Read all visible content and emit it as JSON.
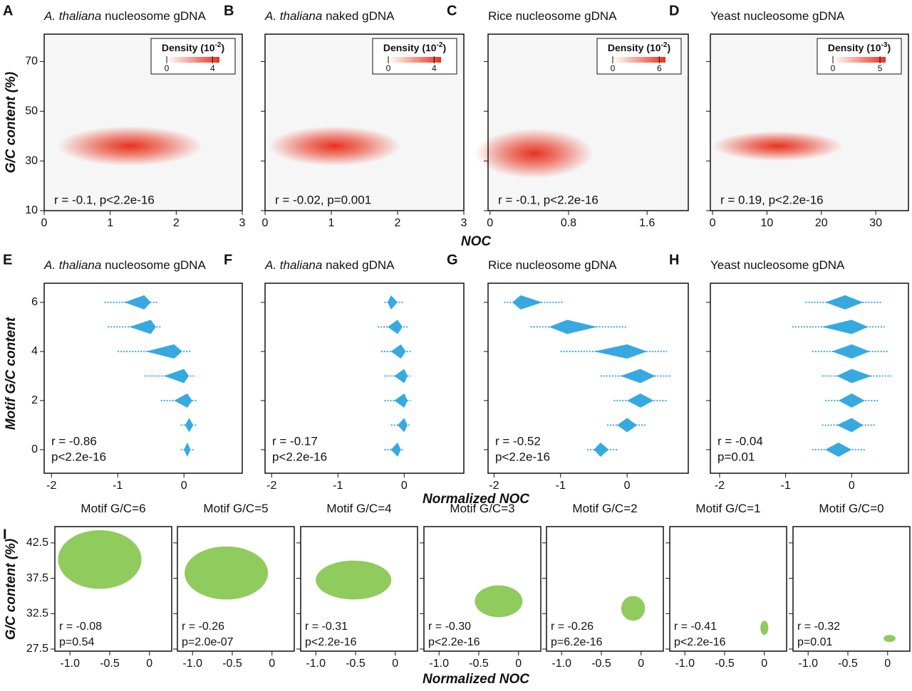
{
  "figure": {
    "letter_I": "I",
    "row1_xlabel": "NOC",
    "row1_ylabel": "G/C content (%)",
    "row2_xlabel": "Normalized NOC",
    "row2_ylabel": "Motif G/C content",
    "row3_xlabel": "Normalized NOC",
    "row3_ylabel": "G/C content (%)"
  },
  "chart_data": [
    {
      "type": "density",
      "panel": "A",
      "title_italic": "A. thaliana",
      "title": " nucleosome gDNA",
      "stats": "r = -0.1, p<2.2e-16",
      "xlim": [
        0,
        3
      ],
      "xticks": [
        0,
        1,
        2,
        3
      ],
      "ylim": [
        10,
        81
      ],
      "yticks": [
        10,
        30,
        50,
        70
      ],
      "density": {
        "peak_x": 1.3,
        "peak_y": 36,
        "x_spread": 1.1,
        "y_spread": 8
      },
      "color": "#e8321e",
      "colorbar": {
        "label_parts": [
          "Density (10",
          "-2",
          ")"
        ],
        "lim": [
          0,
          4.6
        ],
        "ticks": [
          0,
          4
        ]
      }
    },
    {
      "type": "density",
      "panel": "B",
      "title_italic": "A. thaliana",
      "title": " naked gDNA",
      "stats": "r = -0.02, p=0.001",
      "xlim": [
        0,
        3
      ],
      "xticks": [
        0,
        1,
        2,
        3
      ],
      "ylim": [
        10,
        81
      ],
      "yticks": [
        10,
        30,
        50,
        70
      ],
      "density": {
        "peak_x": 1.05,
        "peak_y": 36,
        "x_spread": 1.0,
        "y_spread": 8
      },
      "color": "#e8321e",
      "colorbar": {
        "label_parts": [
          "Density (10",
          "-2",
          ")"
        ],
        "lim": [
          0,
          4.6
        ],
        "ticks": [
          0,
          4
        ]
      }
    },
    {
      "type": "density",
      "panel": "C",
      "title": "Rice nucleosome gDNA",
      "stats": "r = -0.1, p<2.2e-16",
      "xlim": [
        -0.02,
        2.02
      ],
      "xticks": [
        0,
        0.8,
        1.6
      ],
      "ylim": [
        10,
        81
      ],
      "yticks": [
        10,
        30,
        50,
        70
      ],
      "density": {
        "peak_x": 0.45,
        "peak_y": 33,
        "x_spread": 0.6,
        "y_spread": 10
      },
      "color": "#e8321e",
      "colorbar": {
        "label_parts": [
          "Density (10",
          "-2",
          ")"
        ],
        "lim": [
          0,
          6.8
        ],
        "ticks": [
          0,
          6
        ]
      }
    },
    {
      "type": "density",
      "panel": "D",
      "title": "Yeast nucleosome gDNA",
      "stats": "r = 0.19, p<2.2e-16",
      "xlim": [
        -0.4,
        36
      ],
      "xticks": [
        0,
        10,
        20,
        30
      ],
      "ylim": [
        10,
        81
      ],
      "yticks": [
        10,
        30,
        50,
        70
      ],
      "density": {
        "peak_x": 12,
        "peak_y": 36,
        "x_spread": 12,
        "y_spread": 6
      },
      "color": "#e8321e",
      "colorbar": {
        "label_parts": [
          "Density (10",
          "-3",
          ")"
        ],
        "lim": [
          0,
          5.6
        ],
        "ticks": [
          0,
          5
        ]
      }
    },
    {
      "type": "swarm",
      "panel": "E",
      "title_italic": "A. thaliana",
      "title": " nucleosome gDNA",
      "stats": [
        "r = -0.86",
        "p<2.2e-16"
      ],
      "xlim": [
        -2.11,
        0.88
      ],
      "xticks": [
        -2,
        -1,
        0
      ],
      "ylim": [
        -0.96,
        6.78
      ],
      "yticks": [
        0,
        2,
        4,
        6
      ],
      "color": "#36a9e1",
      "rows": [
        0,
        1,
        2,
        3,
        4,
        5,
        6
      ],
      "x_min": [
        -0.05,
        -0.05,
        -0.35,
        -0.6,
        -1.0,
        -1.15,
        -1.2
      ],
      "x_max": [
        0.15,
        0.2,
        0.2,
        0.15,
        0.1,
        -0.35,
        -0.4
      ],
      "x_peak": [
        0.05,
        0.08,
        0.05,
        0,
        -0.15,
        -0.5,
        -0.6
      ]
    },
    {
      "type": "swarm",
      "panel": "F",
      "title_italic": "A. thaliana",
      "title": " naked gDNA",
      "stats": [
        "r = -0.17",
        "p<2.2e-16"
      ],
      "xlim": [
        -2.1,
        0.9
      ],
      "xticks": [
        -2,
        -1,
        0
      ],
      "ylim": [
        -0.96,
        6.78
      ],
      "yticks": [
        0,
        2,
        4,
        6
      ],
      "color": "#36a9e1",
      "rows": [
        0,
        1,
        2,
        3,
        4,
        5,
        6
      ],
      "x_min": [
        -0.3,
        -0.2,
        -0.3,
        -0.3,
        -0.35,
        -0.4,
        -0.3
      ],
      "x_max": [
        0,
        0.1,
        0.1,
        0.1,
        0.1,
        0.05,
        0
      ],
      "x_peak": [
        -0.1,
        0,
        0,
        0,
        -0.05,
        -0.1,
        -0.2
      ]
    },
    {
      "type": "swarm",
      "panel": "G",
      "title": "Rice nucleosome gDNA",
      "stats": [
        "r = -0.52",
        "p<2.2e-16"
      ],
      "xlim": [
        -2.09,
        0.92
      ],
      "xticks": [
        -2,
        -1,
        0
      ],
      "ylim": [
        -0.96,
        6.78
      ],
      "yticks": [
        0,
        2,
        4,
        6
      ],
      "color": "#36a9e1",
      "rows": [
        0,
        1,
        2,
        3,
        4,
        5,
        6
      ],
      "x_min": [
        -0.6,
        -0.3,
        -0.2,
        -0.4,
        -1.0,
        -1.45,
        -1.85
      ],
      "x_max": [
        -0.15,
        0.3,
        0.6,
        0.65,
        0.6,
        0,
        -0.95
      ],
      "x_peak": [
        -0.4,
        0,
        0.2,
        0.2,
        0,
        -0.9,
        -1.6
      ]
    },
    {
      "type": "swarm",
      "panel": "H",
      "title": "Yeast nucleosome gDNA",
      "stats": [
        "r = -0.04",
        "p=0.01"
      ],
      "xlim": [
        -2.14,
        0.86
      ],
      "xticks": [
        -2,
        -1,
        0
      ],
      "ylim": [
        -0.96,
        6.78
      ],
      "yticks": [
        0,
        2,
        4,
        6
      ],
      "color": "#36a9e1",
      "rows": [
        0,
        1,
        2,
        3,
        4,
        5,
        6
      ],
      "x_min": [
        -0.6,
        -0.45,
        -0.4,
        -0.45,
        -0.6,
        -0.9,
        -0.7
      ],
      "x_max": [
        0.2,
        0.35,
        0.4,
        0.6,
        0.55,
        0.5,
        0.45
      ],
      "x_peak": [
        -0.2,
        0,
        0,
        0,
        0,
        0,
        -0.1
      ]
    },
    {
      "type": "cloud",
      "title": "Motif G/C=6",
      "stats": [
        "r = -0.08",
        "p=0.54"
      ],
      "xlim": [
        -1.19,
        0.28
      ],
      "xticks": [
        {
          "value": -1,
          "label": "-1.0"
        },
        -0.5,
        0
      ],
      "ylim": [
        27.2,
        44.8
      ],
      "yticks": [
        27.5,
        32.5,
        37.5,
        42.5
      ],
      "color": "#7dc242",
      "x_range": [
        -1.15,
        -0.1
      ],
      "y_range": [
        36,
        44.3
      ]
    },
    {
      "type": "cloud",
      "title": "Motif G/C=5",
      "stats": [
        "r = -0.26",
        "p=2.0e-07"
      ],
      "xlim": [
        -1.19,
        0.28
      ],
      "xticks": [
        {
          "value": -1,
          "label": "-1.0"
        },
        -0.5,
        0
      ],
      "ylim": [
        27.2,
        44.8
      ],
      "yticks": [
        27.5,
        32.5,
        37.5,
        42.5
      ],
      "color": "#7dc242",
      "x_range": [
        -1.1,
        -0.05
      ],
      "y_range": [
        34.5,
        42
      ]
    },
    {
      "type": "cloud",
      "title": "Motif G/C=4",
      "stats": [
        "r = -0.31",
        "p<2.2e-16"
      ],
      "xlim": [
        -1.19,
        0.28
      ],
      "xticks": [
        {
          "value": -1,
          "label": "-1.0"
        },
        -0.5,
        0
      ],
      "ylim": [
        27.2,
        44.8
      ],
      "yticks": [
        27.5,
        32.5,
        37.5,
        42.5
      ],
      "color": "#7dc242",
      "x_range": [
        -1.0,
        -0.05
      ],
      "y_range": [
        34.5,
        40
      ]
    },
    {
      "type": "cloud",
      "title": "Motif G/C=3",
      "stats": [
        "r = -0.30",
        "p<2.2e-16"
      ],
      "xlim": [
        -1.19,
        0.28
      ],
      "xticks": [
        {
          "value": -1,
          "label": "-1.0"
        },
        -0.5,
        0
      ],
      "ylim": [
        27.2,
        44.8
      ],
      "yticks": [
        27.5,
        32.5,
        37.5,
        42.5
      ],
      "color": "#7dc242",
      "x_range": [
        -0.55,
        0.05
      ],
      "y_range": [
        32,
        36.5
      ]
    },
    {
      "type": "cloud",
      "title": "Motif G/C=2",
      "stats": [
        "r = -0.26",
        "p=6.2e-16"
      ],
      "xlim": [
        -1.19,
        0.28
      ],
      "xticks": [
        {
          "value": -1,
          "label": "-1.0"
        },
        -0.5,
        0
      ],
      "ylim": [
        27.2,
        44.8
      ],
      "yticks": [
        27.5,
        32.5,
        37.5,
        42.5
      ],
      "color": "#7dc242",
      "x_range": [
        -0.25,
        0.05
      ],
      "y_range": [
        31.5,
        35
      ]
    },
    {
      "type": "cloud",
      "title": "Motif G/C=1",
      "stats": [
        "r = -0.41",
        "p<2.2e-16"
      ],
      "xlim": [
        -1.19,
        0.28
      ],
      "xticks": [
        {
          "value": -1,
          "label": "-1.0"
        },
        -0.5,
        0
      ],
      "ylim": [
        27.2,
        44.8
      ],
      "yticks": [
        27.5,
        32.5,
        37.5,
        42.5
      ],
      "color": "#7dc242",
      "x_range": [
        -0.05,
        0.05
      ],
      "y_range": [
        29.5,
        31.5
      ]
    },
    {
      "type": "cloud",
      "title": "Motif G/C=0",
      "stats": [
        "r = -0.32",
        "p=0.01"
      ],
      "xlim": [
        -1.19,
        0.28
      ],
      "xticks": [
        {
          "value": -1,
          "label": "-1.0"
        },
        -0.5,
        0
      ],
      "ylim": [
        27.2,
        44.8
      ],
      "yticks": [
        27.5,
        32.5,
        37.5,
        42.5
      ],
      "color": "#7dc242",
      "x_range": [
        -0.05,
        0.1
      ],
      "y_range": [
        28.5,
        29.5
      ]
    }
  ]
}
